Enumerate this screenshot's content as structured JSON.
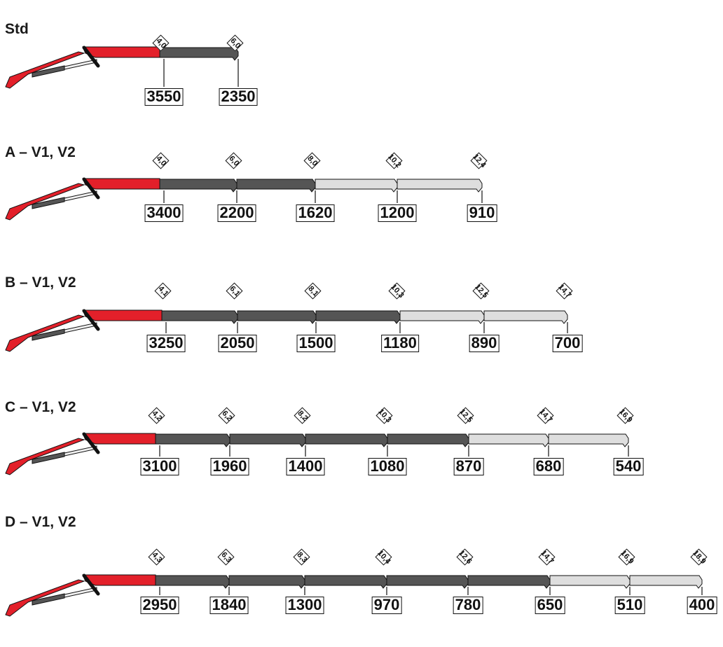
{
  "colors": {
    "boom_red": "#e3202a",
    "dark_section": "#555555",
    "light_section": "#dedede",
    "outline": "#111111"
  },
  "configs": [
    {
      "label": "Std",
      "sections": [
        {
          "reach": "4,0",
          "load": "3550",
          "shade": "dark"
        },
        {
          "reach": "6,0",
          "load": "2350",
          "shade": "dark"
        }
      ]
    },
    {
      "label": "A – V1, V2",
      "sections": [
        {
          "reach": "4,0",
          "load": "3400",
          "shade": "dark"
        },
        {
          "reach": "6,0",
          "load": "2200",
          "shade": "dark"
        },
        {
          "reach": "8,0",
          "load": "1620",
          "shade": "dark"
        },
        {
          "reach": "10,2",
          "load": "1200",
          "shade": "light"
        },
        {
          "reach": "12,4",
          "load": "910",
          "shade": "light"
        }
      ]
    },
    {
      "label": "B – V1, V2",
      "sections": [
        {
          "reach": "4,1",
          "load": "3250",
          "shade": "dark"
        },
        {
          "reach": "6,1",
          "load": "2050",
          "shade": "dark"
        },
        {
          "reach": "8,1",
          "load": "1500",
          "shade": "dark"
        },
        {
          "reach": "10,3",
          "load": "1180",
          "shade": "dark"
        },
        {
          "reach": "12,5",
          "load": "890",
          "shade": "light"
        },
        {
          "reach": "14,7",
          "load": "700",
          "shade": "light"
        }
      ]
    },
    {
      "label": "C – V1, V2",
      "sections": [
        {
          "reach": "4,2",
          "load": "3100",
          "shade": "dark"
        },
        {
          "reach": "6,2",
          "load": "1960",
          "shade": "dark"
        },
        {
          "reach": "8,2",
          "load": "1400",
          "shade": "dark"
        },
        {
          "reach": "10,3",
          "load": "1080",
          "shade": "dark"
        },
        {
          "reach": "12,5",
          "load": "870",
          "shade": "dark"
        },
        {
          "reach": "14,7",
          "load": "680",
          "shade": "light"
        },
        {
          "reach": "16,9",
          "load": "540",
          "shade": "light"
        }
      ]
    },
    {
      "label": "D – V1, V2",
      "sections": [
        {
          "reach": "4,3",
          "load": "2950",
          "shade": "dark"
        },
        {
          "reach": "6,3",
          "load": "1840",
          "shade": "dark"
        },
        {
          "reach": "8,3",
          "load": "1300",
          "shade": "dark"
        },
        {
          "reach": "10,4",
          "load": "970",
          "shade": "dark"
        },
        {
          "reach": "12,6",
          "load": "780",
          "shade": "dark"
        },
        {
          "reach": "14,7",
          "load": "650",
          "shade": "dark"
        },
        {
          "reach": "16,9",
          "load": "510",
          "shade": "light"
        },
        {
          "reach": "18,9",
          "load": "400",
          "shade": "light"
        }
      ]
    }
  ]
}
